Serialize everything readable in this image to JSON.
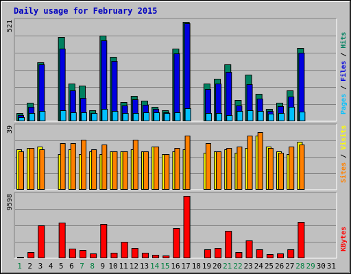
{
  "chart_data": {
    "type": "bar",
    "title": "Daily usage for February 2015",
    "days": [
      "1",
      "2",
      "3",
      "4",
      "5",
      "6",
      "7",
      "8",
      "9",
      "10",
      "11",
      "12",
      "13",
      "14",
      "15",
      "16",
      "17",
      "18",
      "19",
      "20",
      "21",
      "22",
      "23",
      "24",
      "25",
      "26",
      "27",
      "28",
      "29",
      "30",
      "31"
    ],
    "weekend_days": [
      "1",
      "7",
      "8",
      "14",
      "15",
      "21",
      "22",
      "28",
      "29"
    ],
    "panels": [
      {
        "id": "hits",
        "ymax_label": "521",
        "ymax": 521,
        "right_labels": [
          "Pages",
          "Files",
          "Hits"
        ],
        "series": [
          {
            "name": "Hits",
            "color": "#008060",
            "values": [
              39,
              94,
              308,
              0,
              440,
              195,
              183,
              53,
              449,
              337,
              99,
              132,
              104,
              72,
              53,
              380,
              521,
              0,
              195,
              222,
              297,
              108,
              241,
              140,
              61,
              94,
              160,
              384,
              0,
              0,
              0
            ]
          },
          {
            "name": "Files",
            "color": "#0000e0",
            "values": [
              28,
              73,
              297,
              0,
              379,
              159,
              121,
              39,
              424,
              315,
              81,
              111,
              82,
              61,
              43,
              356,
              515,
              0,
              168,
              194,
              257,
              79,
              193,
              116,
              49,
              76,
              125,
              358,
              0,
              0,
              0
            ]
          },
          {
            "name": "Pages",
            "color": "#00c0ff",
            "values": [
              17,
              39,
              50,
              0,
              56,
              45,
              45,
              40,
              61,
              51,
              40,
              41,
              43,
              45,
              40,
              43,
              64,
              0,
              39,
              39,
              30,
              50,
              53,
              50,
              35,
              40,
              71,
              47,
              0,
              0,
              0
            ]
          }
        ]
      },
      {
        "id": "sites",
        "ymax_label": "39",
        "ymax": 39,
        "right_labels": [
          "Sites",
          "Visits"
        ],
        "series": [
          {
            "name": "Visits",
            "color": "#ffff00",
            "values": [
              25,
              26,
              27,
              0,
              22,
              25,
              22,
              24,
              22,
              24,
              24,
              25,
              24,
              27,
              22,
              24,
              25,
              0,
              23,
              24,
              25,
              23,
              26,
              34,
              27,
              24,
              22,
              30,
              0,
              0,
              0
            ]
          },
          {
            "name": "Sites",
            "color": "#ff8000",
            "values": [
              24,
              26,
              25,
              0,
              29,
              29,
              31,
              25,
              28,
              24,
              24,
              31,
              24,
              27,
              22,
              26,
              34,
              0,
              29,
              24,
              26,
              27,
              34,
              36,
              26,
              23,
              27,
              28,
              0,
              0,
              0
            ]
          }
        ]
      },
      {
        "id": "kbytes",
        "ymax_label": "9598",
        "ymax": 9598,
        "right_labels": [
          "KBytes"
        ],
        "series": [
          {
            "name": "KBytes",
            "color": "#ff0000",
            "values": [
              158,
              850,
              5003,
              0,
              5470,
              1350,
              1220,
              616,
              5190,
              750,
              2430,
              1450,
              750,
              470,
              320,
              4550,
              9598,
              0,
              1290,
              1470,
              4180,
              880,
              2660,
              1250,
              560,
              630,
              1250,
              5520,
              0,
              0,
              0
            ]
          }
        ]
      }
    ],
    "colors": {
      "title": "#0000c0",
      "weekend_day": "#008040",
      "weekday_day": "#000000",
      "plot_bg": "#c0c0c0",
      "gridline": "#808080"
    }
  }
}
